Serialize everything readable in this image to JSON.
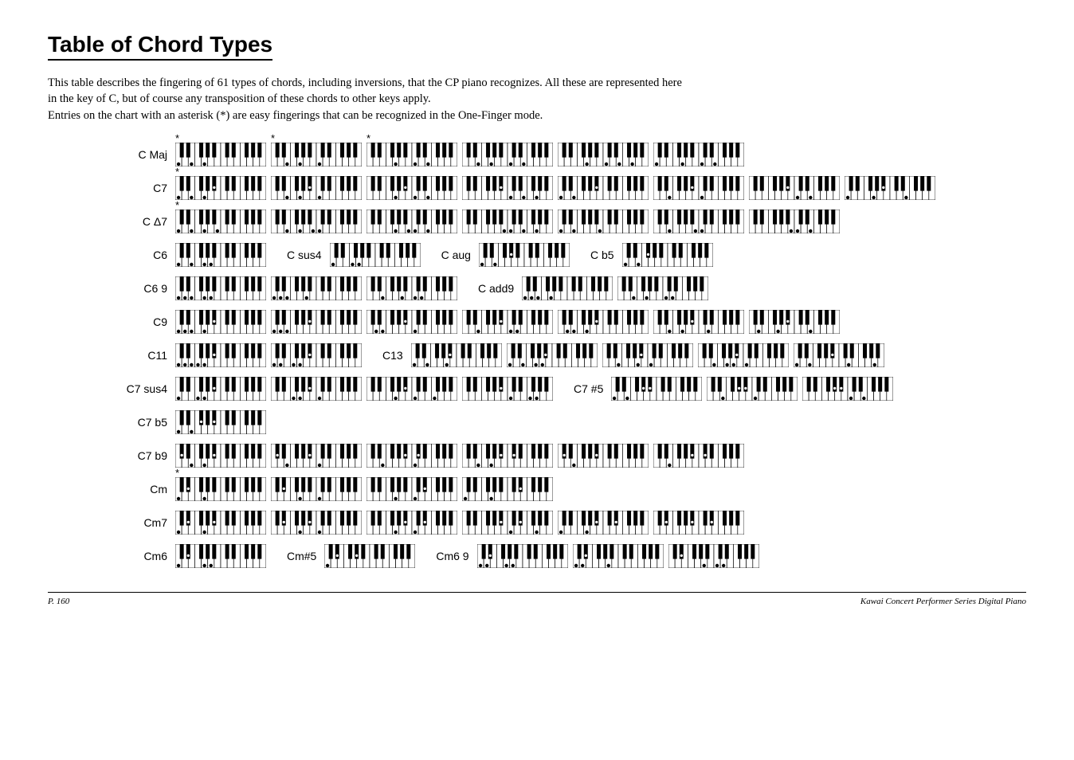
{
  "title": "Table of Chord Types",
  "intro_p1": "This table describes the fingering of 61 types of chords, including inversions, that the CP piano recognizes.  All these are represented here in the key of C, but of course any transposition of these chords to other keys apply.",
  "intro_p2": "Entries on the chart with an asterisk (*) are easy fingerings that can be recognized in the One-Finger mode.",
  "footer_left": "P.   160",
  "footer_right": "Kawai Concert Performer Series Digital Piano",
  "keyboard": {
    "width": 114,
    "height": 30,
    "octaves": 2,
    "white_key_width": 8.14,
    "white_key_color": "#ffffff",
    "black_key_color": "#000000",
    "border_color": "#000000",
    "black_key_height_ratio": 0.62,
    "black_key_width": 5,
    "dot_radius_white": 2.2,
    "dot_radius_black": 1.7,
    "dot_color_white": "#000000",
    "dot_color_black": "#ffffff",
    "dot_y_white_ratio": 0.9,
    "dot_y_black_ratio": 0.48
  },
  "rows": [
    {
      "items": [
        {
          "type": "label",
          "text": "C Maj"
        },
        {
          "type": "kbd",
          "notes": [
            0,
            4,
            7
          ],
          "ast": true
        },
        {
          "type": "kbd",
          "notes": [
            4,
            7,
            12
          ],
          "ast": true
        },
        {
          "type": "kbd",
          "notes": [
            7,
            12,
            16
          ],
          "ast": true
        },
        {
          "type": "kbd",
          "notes": [
            4,
            7,
            12,
            16
          ]
        },
        {
          "type": "kbd",
          "notes": [
            7,
            12,
            16,
            19
          ]
        },
        {
          "type": "kbd",
          "notes": [
            0,
            7,
            12,
            16
          ]
        }
      ]
    },
    {
      "items": [
        {
          "type": "label",
          "text": "C7"
        },
        {
          "type": "kbd",
          "notes": [
            0,
            4,
            7,
            10
          ],
          "ast": true
        },
        {
          "type": "kbd",
          "notes": [
            4,
            7,
            10,
            12
          ]
        },
        {
          "type": "kbd",
          "notes": [
            7,
            10,
            12,
            16
          ]
        },
        {
          "type": "kbd",
          "notes": [
            10,
            12,
            16,
            19
          ]
        },
        {
          "type": "kbd",
          "notes": [
            0,
            4,
            10
          ]
        },
        {
          "type": "kbd",
          "notes": [
            4,
            10,
            12
          ]
        },
        {
          "type": "kbd",
          "notes": [
            10,
            12,
            16
          ]
        },
        {
          "type": "kbd",
          "notes": [
            0,
            7,
            10,
            16
          ]
        }
      ]
    },
    {
      "items": [
        {
          "type": "label",
          "text": "C Δ7"
        },
        {
          "type": "kbd",
          "notes": [
            0,
            4,
            7,
            11
          ],
          "ast": true
        },
        {
          "type": "kbd",
          "notes": [
            4,
            7,
            11,
            12
          ]
        },
        {
          "type": "kbd",
          "notes": [
            7,
            11,
            12,
            16
          ]
        },
        {
          "type": "kbd",
          "notes": [
            11,
            12,
            16,
            19
          ]
        },
        {
          "type": "kbd",
          "notes": [
            0,
            4,
            11
          ]
        },
        {
          "type": "kbd",
          "notes": [
            4,
            11,
            12
          ]
        },
        {
          "type": "kbd",
          "notes": [
            11,
            12,
            16
          ]
        }
      ]
    },
    {
      "items": [
        {
          "type": "label",
          "text": "C6"
        },
        {
          "type": "kbd",
          "notes": [
            0,
            4,
            7,
            9
          ]
        },
        {
          "type": "inline-label",
          "text": "C sus4"
        },
        {
          "type": "kbd",
          "notes": [
            0,
            5,
            7
          ]
        },
        {
          "type": "inline-label",
          "text": "C aug"
        },
        {
          "type": "kbd",
          "notes": [
            0,
            4,
            8
          ]
        },
        {
          "type": "inline-label",
          "text": "C b5"
        },
        {
          "type": "kbd",
          "notes": [
            0,
            4,
            6
          ]
        }
      ]
    },
    {
      "items": [
        {
          "type": "label",
          "text": "C6 9"
        },
        {
          "type": "kbd",
          "notes": [
            0,
            2,
            4,
            7,
            9
          ]
        },
        {
          "type": "kbd",
          "notes": [
            0,
            2,
            4,
            9
          ]
        },
        {
          "type": "kbd",
          "notes": [
            4,
            9,
            12,
            14
          ]
        },
        {
          "type": "inline-label",
          "text": "C add9"
        },
        {
          "type": "kbd",
          "notes": [
            0,
            2,
            4,
            7
          ]
        },
        {
          "type": "kbd",
          "notes": [
            4,
            7,
            12,
            14
          ]
        }
      ]
    },
    {
      "items": [
        {
          "type": "label",
          "text": "C9"
        },
        {
          "type": "kbd",
          "notes": [
            0,
            2,
            4,
            7,
            10
          ]
        },
        {
          "type": "kbd",
          "notes": [
            0,
            2,
            4,
            10
          ]
        },
        {
          "type": "kbd",
          "notes": [
            2,
            4,
            10,
            12
          ]
        },
        {
          "type": "kbd",
          "notes": [
            4,
            10,
            12,
            14
          ]
        },
        {
          "type": "kbd",
          "notes": [
            2,
            4,
            7,
            10
          ]
        },
        {
          "type": "kbd",
          "notes": [
            4,
            7,
            10,
            14
          ]
        },
        {
          "type": "kbd",
          "notes": [
            2,
            7,
            10,
            16
          ]
        }
      ]
    },
    {
      "items": [
        {
          "type": "label",
          "text": "C11"
        },
        {
          "type": "kbd",
          "notes": [
            0,
            2,
            4,
            5,
            7,
            10
          ]
        },
        {
          "type": "kbd",
          "notes": [
            0,
            2,
            5,
            7,
            10
          ]
        },
        {
          "type": "inline-label",
          "text": "C13"
        },
        {
          "type": "kbd",
          "notes": [
            0,
            4,
            9,
            10
          ]
        },
        {
          "type": "kbd",
          "notes": [
            0,
            4,
            7,
            9,
            10
          ]
        },
        {
          "type": "kbd",
          "notes": [
            4,
            9,
            10,
            12
          ]
        },
        {
          "type": "kbd",
          "notes": [
            4,
            7,
            9,
            10,
            12
          ]
        },
        {
          "type": "kbd",
          "notes": [
            0,
            4,
            10,
            14,
            21
          ]
        }
      ]
    },
    {
      "items": [
        {
          "type": "label",
          "text": "C7 sus4"
        },
        {
          "type": "kbd",
          "notes": [
            0,
            5,
            7,
            10
          ]
        },
        {
          "type": "kbd",
          "notes": [
            5,
            7,
            10,
            12
          ]
        },
        {
          "type": "kbd",
          "notes": [
            7,
            10,
            12,
            17
          ]
        },
        {
          "type": "kbd",
          "notes": [
            10,
            12,
            17,
            19
          ]
        },
        {
          "type": "inline-label",
          "text": "C7 #5"
        },
        {
          "type": "kbd",
          "notes": [
            0,
            4,
            8,
            10
          ]
        },
        {
          "type": "kbd",
          "notes": [
            4,
            8,
            10,
            12
          ]
        },
        {
          "type": "kbd",
          "notes": [
            8,
            10,
            12,
            16
          ]
        }
      ]
    },
    {
      "items": [
        {
          "type": "label",
          "text": "C7 b5"
        },
        {
          "type": "kbd",
          "notes": [
            0,
            4,
            6,
            10
          ]
        }
      ]
    },
    {
      "items": [
        {
          "type": "label",
          "text": "C7 b9"
        },
        {
          "type": "kbd",
          "notes": [
            1,
            4,
            7,
            10
          ]
        },
        {
          "type": "kbd",
          "notes": [
            1,
            4,
            10,
            12
          ]
        },
        {
          "type": "kbd",
          "notes": [
            4,
            10,
            12,
            13
          ]
        },
        {
          "type": "kbd",
          "notes": [
            4,
            7,
            10,
            13
          ]
        },
        {
          "type": "kbd",
          "notes": [
            1,
            4,
            10
          ]
        },
        {
          "type": "kbd",
          "notes": [
            4,
            10,
            13
          ]
        }
      ]
    },
    {
      "items": [
        {
          "type": "label",
          "text": "Cm"
        },
        {
          "type": "kbd",
          "notes": [
            0,
            3,
            7
          ],
          "ast": true
        },
        {
          "type": "kbd",
          "notes": [
            3,
            7,
            12
          ]
        },
        {
          "type": "kbd",
          "notes": [
            7,
            12,
            15
          ]
        },
        {
          "type": "kbd",
          "notes": [
            0,
            7,
            15
          ]
        }
      ]
    },
    {
      "items": [
        {
          "type": "label",
          "text": "Cm7"
        },
        {
          "type": "kbd",
          "notes": [
            0,
            3,
            7,
            10
          ]
        },
        {
          "type": "kbd",
          "notes": [
            3,
            7,
            10,
            12
          ]
        },
        {
          "type": "kbd",
          "notes": [
            7,
            10,
            12,
            15
          ]
        },
        {
          "type": "kbd",
          "notes": [
            10,
            12,
            15,
            19
          ]
        },
        {
          "type": "kbd",
          "notes": [
            0,
            7,
            10,
            15
          ]
        },
        {
          "type": "kbd",
          "notes": [
            3,
            10,
            15
          ]
        }
      ]
    },
    {
      "items": [
        {
          "type": "label",
          "text": "Cm6"
        },
        {
          "type": "kbd",
          "notes": [
            0,
            3,
            7,
            9
          ]
        },
        {
          "type": "inline-label",
          "text": "Cm#5"
        },
        {
          "type": "kbd",
          "notes": [
            0,
            3,
            8
          ]
        },
        {
          "type": "inline-label",
          "text": "Cm6 9"
        },
        {
          "type": "kbd",
          "notes": [
            0,
            2,
            3,
            7,
            9
          ]
        },
        {
          "type": "kbd",
          "notes": [
            0,
            2,
            3,
            9
          ]
        },
        {
          "type": "kbd",
          "notes": [
            3,
            9,
            12,
            14
          ]
        }
      ]
    }
  ]
}
